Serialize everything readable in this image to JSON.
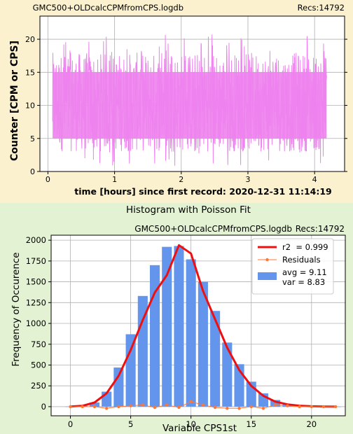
{
  "top_chart": {
    "file_label": "GMC500+OLDcalcCPMfromCPS.logdb",
    "recs_label": "Recs:14792",
    "ylabel": "Counter  [CPM or CPS]",
    "xlabel": "time [hours] since first record: 2020-12-31 11:14:19",
    "color": "#ee82ee",
    "bg": "#fbf1cf"
  },
  "hist_panel": {
    "title": "Histogram with Poisson Fit",
    "file_label": "GMC500+OLDcalcCPMfromCPS.logdb",
    "recs_label": "Recs:14792",
    "bg": "#e3f2d2"
  },
  "chart_data": [
    {
      "type": "line",
      "xlabel": "time [hours] since first record: 2020-12-31 11:14:19",
      "ylabel": "Counter  [CPM or CPS]",
      "xlim": [
        -0.12,
        4.45
      ],
      "ylim": [
        0,
        23.5
      ],
      "x_ticks": [
        0,
        1,
        2,
        3,
        4
      ],
      "y_ticks": [
        0,
        5,
        10,
        15,
        20
      ],
      "x_range": [
        0.07,
        4.18
      ],
      "band": {
        "typical_low": 5,
        "typical_high": 15,
        "min": 0,
        "max": 21
      },
      "grid": true,
      "series": [
        {
          "color": "#ee82ee"
        }
      ]
    },
    {
      "type": "bar",
      "title": "Histogram with Poisson Fit",
      "xlabel": "Variable CPS1st",
      "ylabel": "Frequency of Occurence",
      "xlim": [
        -1.6,
        22.8
      ],
      "ylim": [
        -110,
        2060
      ],
      "x_ticks": [
        0,
        5,
        10,
        15,
        20
      ],
      "y_ticks": [
        0,
        250,
        500,
        750,
        1000,
        1250,
        1500,
        1750,
        2000
      ],
      "grid": true,
      "categories": [
        0,
        1,
        2,
        3,
        4,
        5,
        6,
        7,
        8,
        9,
        10,
        11,
        12,
        13,
        14,
        15,
        16,
        17,
        18,
        19,
        20,
        21,
        22
      ],
      "series": [
        {
          "name": "avg = 9.11\nvar = 8.83",
          "kind": "bar",
          "color": "#6495ed",
          "values": [
            1,
            10,
            50,
            180,
            470,
            870,
            1330,
            1700,
            1920,
            1930,
            1770,
            1500,
            1150,
            770,
            510,
            300,
            160,
            80,
            30,
            15,
            5,
            2,
            1
          ]
        },
        {
          "name": "r2  = 0.999",
          "kind": "line",
          "color": "#ee1010",
          "values": [
            1,
            10,
            50,
            160,
            370,
            680,
            1040,
            1370,
            1580,
            1940,
            1840,
            1390,
            1050,
            710,
            440,
            250,
            130,
            60,
            27,
            11,
            4,
            1,
            0
          ]
        },
        {
          "name": "Residuals",
          "kind": "line-marker",
          "color": "#ff7733",
          "values": [
            0,
            0,
            0,
            -20,
            0,
            10,
            20,
            -10,
            20,
            -10,
            60,
            20,
            -10,
            -20,
            -20,
            0,
            -20,
            20,
            10,
            0,
            0,
            0,
            0
          ]
        }
      ],
      "legend": {
        "placement": "top-right"
      }
    }
  ]
}
